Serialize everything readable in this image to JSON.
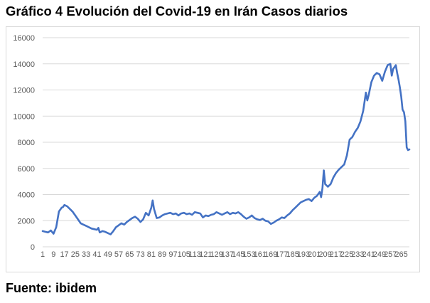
{
  "title": "Gráfico 4 Evolución del Covid-19 en Irán Casos diarios",
  "source": "Fuente: ibidem",
  "colors": {
    "line": "#4472c4",
    "grid": "#d9d9d9",
    "tick": "#595959"
  },
  "chart_data": {
    "type": "line",
    "title": "",
    "xlabel": "",
    "ylabel": "",
    "ylim": [
      0,
      16000
    ],
    "xlim": [
      1,
      271
    ],
    "grid": "horizontal",
    "yticks": [
      0,
      2000,
      4000,
      6000,
      8000,
      10000,
      12000,
      14000,
      16000
    ],
    "xticks": [
      1,
      9,
      17,
      25,
      33,
      41,
      49,
      57,
      65,
      73,
      81,
      89,
      97,
      105,
      113,
      121,
      129,
      137,
      145,
      153,
      161,
      169,
      177,
      185,
      193,
      201,
      209,
      217,
      225,
      233,
      241,
      249,
      257,
      265
    ],
    "series": [
      {
        "name": "",
        "points": [
          [
            1,
            1200
          ],
          [
            3,
            1150
          ],
          [
            5,
            1100
          ],
          [
            7,
            1250
          ],
          [
            9,
            1000
          ],
          [
            11,
            1500
          ],
          [
            13,
            2700
          ],
          [
            15,
            3000
          ],
          [
            16,
            3050
          ],
          [
            17,
            3200
          ],
          [
            19,
            3100
          ],
          [
            21,
            2900
          ],
          [
            23,
            2700
          ],
          [
            25,
            2400
          ],
          [
            27,
            2100
          ],
          [
            29,
            1800
          ],
          [
            31,
            1700
          ],
          [
            33,
            1600
          ],
          [
            35,
            1500
          ],
          [
            37,
            1400
          ],
          [
            39,
            1350
          ],
          [
            41,
            1300
          ],
          [
            42,
            1450
          ],
          [
            43,
            1100
          ],
          [
            45,
            1200
          ],
          [
            47,
            1150
          ],
          [
            49,
            1050
          ],
          [
            51,
            950
          ],
          [
            53,
            1200
          ],
          [
            55,
            1500
          ],
          [
            57,
            1650
          ],
          [
            59,
            1800
          ],
          [
            61,
            1700
          ],
          [
            63,
            1900
          ],
          [
            65,
            2050
          ],
          [
            67,
            2200
          ],
          [
            69,
            2300
          ],
          [
            71,
            2150
          ],
          [
            73,
            1900
          ],
          [
            75,
            2100
          ],
          [
            77,
            2600
          ],
          [
            79,
            2400
          ],
          [
            81,
            3000
          ],
          [
            82,
            3550
          ],
          [
            83,
            2900
          ],
          [
            85,
            2200
          ],
          [
            87,
            2250
          ],
          [
            89,
            2400
          ],
          [
            91,
            2500
          ],
          [
            93,
            2550
          ],
          [
            95,
            2600
          ],
          [
            97,
            2500
          ],
          [
            99,
            2550
          ],
          [
            101,
            2400
          ],
          [
            103,
            2550
          ],
          [
            105,
            2600
          ],
          [
            107,
            2500
          ],
          [
            109,
            2550
          ],
          [
            111,
            2450
          ],
          [
            113,
            2650
          ],
          [
            115,
            2600
          ],
          [
            117,
            2550
          ],
          [
            119,
            2250
          ],
          [
            121,
            2400
          ],
          [
            123,
            2350
          ],
          [
            125,
            2450
          ],
          [
            127,
            2500
          ],
          [
            129,
            2650
          ],
          [
            131,
            2550
          ],
          [
            133,
            2450
          ],
          [
            135,
            2550
          ],
          [
            137,
            2650
          ],
          [
            139,
            2500
          ],
          [
            141,
            2600
          ],
          [
            143,
            2550
          ],
          [
            145,
            2650
          ],
          [
            147,
            2500
          ],
          [
            149,
            2300
          ],
          [
            151,
            2150
          ],
          [
            153,
            2250
          ],
          [
            155,
            2400
          ],
          [
            157,
            2200
          ],
          [
            159,
            2100
          ],
          [
            161,
            2050
          ],
          [
            163,
            2150
          ],
          [
            165,
            2000
          ],
          [
            167,
            1950
          ],
          [
            169,
            1750
          ],
          [
            171,
            1850
          ],
          [
            173,
            2000
          ],
          [
            175,
            2100
          ],
          [
            177,
            2250
          ],
          [
            179,
            2200
          ],
          [
            181,
            2400
          ],
          [
            183,
            2550
          ],
          [
            185,
            2800
          ],
          [
            187,
            3000
          ],
          [
            189,
            3200
          ],
          [
            191,
            3400
          ],
          [
            193,
            3500
          ],
          [
            195,
            3600
          ],
          [
            197,
            3650
          ],
          [
            199,
            3500
          ],
          [
            201,
            3750
          ],
          [
            203,
            3900
          ],
          [
            205,
            4200
          ],
          [
            206,
            3800
          ],
          [
            207,
            4500
          ],
          [
            208,
            5850
          ],
          [
            209,
            4800
          ],
          [
            211,
            4600
          ],
          [
            213,
            4800
          ],
          [
            215,
            5300
          ],
          [
            217,
            5650
          ],
          [
            219,
            5900
          ],
          [
            221,
            6100
          ],
          [
            223,
            6300
          ],
          [
            225,
            7000
          ],
          [
            227,
            8200
          ],
          [
            229,
            8400
          ],
          [
            231,
            8800
          ],
          [
            233,
            9100
          ],
          [
            235,
            9600
          ],
          [
            237,
            10400
          ],
          [
            239,
            11800
          ],
          [
            240,
            11200
          ],
          [
            241,
            11600
          ],
          [
            243,
            12600
          ],
          [
            245,
            13100
          ],
          [
            247,
            13300
          ],
          [
            249,
            13200
          ],
          [
            251,
            12700
          ],
          [
            253,
            13400
          ],
          [
            255,
            13900
          ],
          [
            257,
            14000
          ],
          [
            258,
            13100
          ],
          [
            259,
            13600
          ],
          [
            261,
            13900
          ],
          [
            262,
            13300
          ],
          [
            263,
            12800
          ],
          [
            264,
            12200
          ],
          [
            265,
            11500
          ],
          [
            266,
            10500
          ],
          [
            267,
            10300
          ],
          [
            268,
            9600
          ],
          [
            269,
            7600
          ],
          [
            270,
            7400
          ],
          [
            271,
            7450
          ]
        ]
      }
    ]
  }
}
